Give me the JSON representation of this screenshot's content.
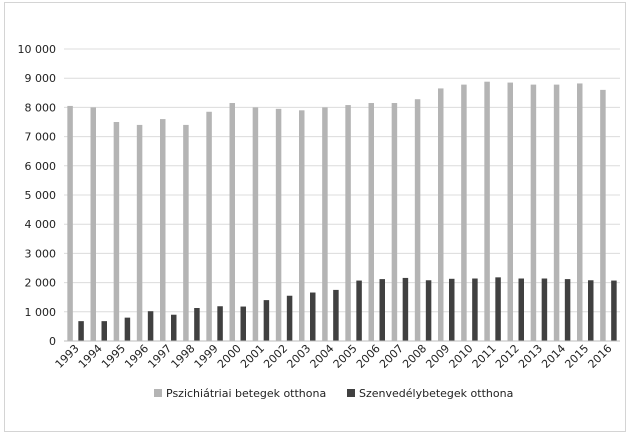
{
  "chart_data": {
    "type": "bar",
    "title": "",
    "xlabel": "",
    "ylabel": "",
    "ylim": [
      0,
      10000
    ],
    "yticks": [
      0,
      1000,
      2000,
      3000,
      4000,
      5000,
      6000,
      7000,
      8000,
      9000,
      10000
    ],
    "ytick_labels": [
      "0",
      "1 000",
      "2 000",
      "3 000",
      "4 000",
      "5 000",
      "6 000",
      "7 000",
      "8 000",
      "9 000",
      "10 000"
    ],
    "grid": true,
    "legend_position": "bottom",
    "categories": [
      "1993",
      "1994",
      "1995",
      "1996",
      "1997",
      "1998",
      "1999",
      "2000",
      "2001",
      "2002",
      "2003",
      "2004",
      "2005",
      "2006",
      "2007",
      "2008",
      "2009",
      "2010",
      "2011",
      "2012",
      "2013",
      "2014",
      "2015",
      "2016"
    ],
    "series": [
      {
        "name": "Pszichiátriai betegek otthona",
        "color": "#b4b4b4",
        "values": [
          8050,
          8000,
          7500,
          7400,
          7600,
          7400,
          7850,
          8150,
          8000,
          7950,
          7900,
          8000,
          8080,
          8150,
          8150,
          8280,
          8650,
          8780,
          8880,
          8850,
          8780,
          8780,
          8820,
          8600
        ]
      },
      {
        "name": "Szenvedélybetegek otthona",
        "color": "#404040",
        "values": [
          680,
          680,
          800,
          1020,
          900,
          1130,
          1190,
          1180,
          1400,
          1550,
          1660,
          1750,
          2070,
          2120,
          2160,
          2080,
          2130,
          2140,
          2180,
          2140,
          2140,
          2120,
          2080,
          2070
        ]
      }
    ]
  }
}
